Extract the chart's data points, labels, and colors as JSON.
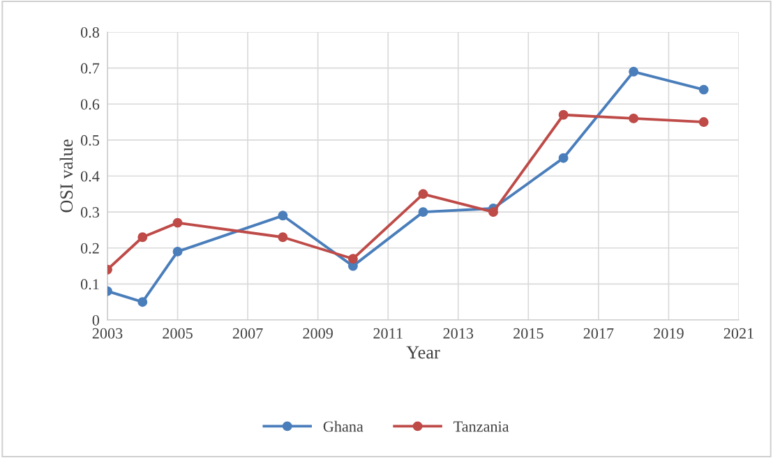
{
  "chart_data": {
    "type": "line",
    "xlabel": "Year",
    "ylabel": "OSI value",
    "xlim": [
      2003,
      2021
    ],
    "xticks": [
      2003,
      2005,
      2007,
      2009,
      2011,
      2013,
      2015,
      2017,
      2019,
      2021
    ],
    "ylim": [
      0,
      0.8
    ],
    "yticks": [
      0,
      0.1,
      0.2,
      0.3,
      0.4,
      0.5,
      0.6,
      0.7,
      0.8
    ],
    "x": [
      2003,
      2004,
      2005,
      2008,
      2010,
      2012,
      2014,
      2016,
      2018,
      2020
    ],
    "series": [
      {
        "name": "Ghana",
        "color": "#4a7ebb",
        "values": [
          0.08,
          0.05,
          0.19,
          0.29,
          0.15,
          0.3,
          0.31,
          0.45,
          0.69,
          0.64
        ]
      },
      {
        "name": "Tanzania",
        "color": "#be4b48",
        "values": [
          0.14,
          0.23,
          0.27,
          0.23,
          0.17,
          0.35,
          0.3,
          0.57,
          0.56,
          0.55
        ]
      }
    ],
    "grid": true,
    "legend": "bottom",
    "marker": "circle",
    "line_style": "solid"
  }
}
